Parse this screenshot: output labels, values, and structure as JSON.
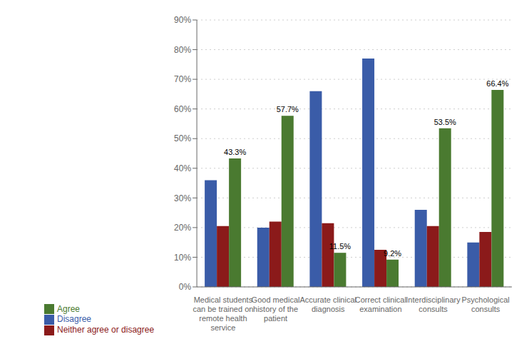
{
  "chart_data": {
    "type": "bar",
    "categories": [
      "Medical students\ncan be trained on\nremote health\nservice",
      "Good medical\nhistory of the\npatient",
      "Accurate clinical\ndiagnosis",
      "Correct clinical\nexamination",
      "Interdisciplinary\nconsults",
      "Psychological\nconsults"
    ],
    "series": [
      {
        "name": "Disagree",
        "color": "#3a5ca8",
        "values": [
          36,
          20,
          66,
          77,
          26,
          15
        ]
      },
      {
        "name": "Neither agree or disagree",
        "color": "#8b1a1a",
        "values": [
          20.5,
          22,
          21.5,
          12.5,
          20.5,
          18.5
        ]
      },
      {
        "name": "Agree",
        "color": "#4a7a30",
        "values": [
          43.3,
          57.7,
          11.5,
          9.2,
          53.5,
          66.4
        ],
        "data_labels": true,
        "value_labels": [
          "43.3%",
          "57.7%",
          "11.5%",
          "9.2%",
          "53.5%",
          "66.4%"
        ]
      }
    ],
    "ylim": [
      0,
      90
    ],
    "yticks": [
      {
        "value": 0,
        "label": "0%"
      },
      {
        "value": 10,
        "label": "10%"
      },
      {
        "value": 20,
        "label": "20%"
      },
      {
        "value": 30,
        "label": "30%"
      },
      {
        "value": 40,
        "label": "40%"
      },
      {
        "value": 50,
        "label": "50%"
      },
      {
        "value": 60,
        "label": "60%"
      },
      {
        "value": 70,
        "label": "70%"
      },
      {
        "value": 80,
        "label": "80%"
      },
      {
        "value": 90,
        "label": "90%"
      }
    ],
    "grid": true,
    "legend": "lower left"
  }
}
